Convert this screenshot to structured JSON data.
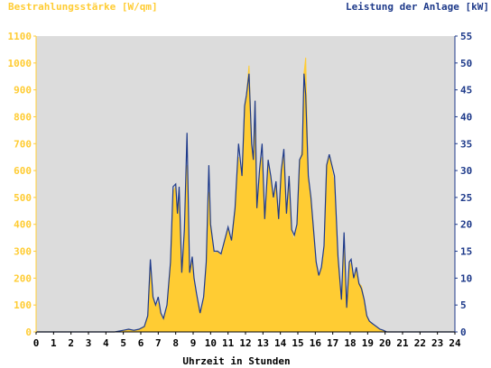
{
  "chart_data": {
    "type": "area",
    "ylabel_left": "Bestrahlungsstärke [W/qm]",
    "ylabel_right": "Leistung der Anlage [kW]",
    "xlabel": "Uhrzeit in Stunden",
    "xlim": [
      0,
      24
    ],
    "ylim_left": [
      0,
      1100
    ],
    "ylim_right": [
      0,
      55
    ],
    "grid": false,
    "x_ticks": [
      "0",
      "1",
      "2",
      "3",
      "4",
      "5",
      "6",
      "7",
      "8",
      "9",
      "10",
      "11",
      "12",
      "13",
      "14",
      "15",
      "16",
      "17",
      "18",
      "19",
      "20",
      "21",
      "22",
      "23",
      "24"
    ],
    "y_left_ticks": [
      "0",
      "100",
      "200",
      "300",
      "400",
      "500",
      "600",
      "700",
      "800",
      "900",
      "1000",
      "1100"
    ],
    "y_right_ticks": [
      "0",
      "5",
      "10",
      "15",
      "20",
      "25",
      "30",
      "35",
      "40",
      "45",
      "50",
      "55"
    ],
    "colors": {
      "irradiance": "#ffcc33",
      "power": "#1e3a8a",
      "plot_background": "#dcdcdc"
    },
    "series": [
      {
        "name": "Bestrahlungsstärke [W/qm]",
        "axis": "left",
        "x": [
          0,
          4.5,
          5,
          5.3,
          5.6,
          5.9,
          6.2,
          6.4,
          6.55,
          6.7,
          6.85,
          7.0,
          7.15,
          7.3,
          7.5,
          7.7,
          7.85,
          8.0,
          8.1,
          8.2,
          8.35,
          8.5,
          8.65,
          8.8,
          8.95,
          9.05,
          9.2,
          9.4,
          9.6,
          9.75,
          9.9,
          10.0,
          10.2,
          10.4,
          10.6,
          10.8,
          11.0,
          11.2,
          11.4,
          11.6,
          11.8,
          11.95,
          12.05,
          12.2,
          12.35,
          12.45,
          12.55,
          12.65,
          12.8,
          12.95,
          13.1,
          13.3,
          13.45,
          13.6,
          13.75,
          13.9,
          14.05,
          14.2,
          14.35,
          14.5,
          14.65,
          14.8,
          14.95,
          15.1,
          15.25,
          15.35,
          15.45,
          15.6,
          15.75,
          15.9,
          16.05,
          16.2,
          16.35,
          16.5,
          16.65,
          16.8,
          16.95,
          17.1,
          17.3,
          17.5,
          17.65,
          17.8,
          17.95,
          18.05,
          18.2,
          18.35,
          18.5,
          18.65,
          18.8,
          18.95,
          19.1,
          19.3,
          19.5,
          19.7,
          19.9,
          20.1,
          20.3,
          20.5,
          21,
          24
        ],
        "values": [
          0,
          0,
          5,
          8,
          5,
          10,
          20,
          60,
          250,
          120,
          90,
          110,
          60,
          40,
          90,
          250,
          520,
          540,
          420,
          530,
          200,
          380,
          620,
          210,
          270,
          180,
          120,
          60,
          120,
          250,
          520,
          380,
          290,
          300,
          280,
          330,
          380,
          340,
          460,
          650,
          560,
          840,
          880,
          990,
          700,
          640,
          860,
          460,
          600,
          650,
          410,
          640,
          560,
          480,
          560,
          420,
          600,
          660,
          420,
          580,
          370,
          340,
          400,
          620,
          680,
          960,
          1020,
          560,
          500,
          360,
          250,
          200,
          240,
          310,
          620,
          650,
          600,
          550,
          270,
          120,
          340,
          90,
          260,
          250,
          200,
          230,
          180,
          170,
          120,
          60,
          40,
          25,
          15,
          10,
          5,
          0,
          0,
          0,
          0,
          0
        ]
      },
      {
        "name": "Leistung der Anlage [kW]",
        "axis": "right",
        "x": [
          0,
          4.5,
          5,
          5.3,
          5.6,
          5.9,
          6.2,
          6.4,
          6.55,
          6.7,
          6.85,
          7.0,
          7.15,
          7.3,
          7.5,
          7.7,
          7.85,
          8.0,
          8.1,
          8.2,
          8.35,
          8.5,
          8.65,
          8.8,
          8.95,
          9.05,
          9.2,
          9.4,
          9.6,
          9.75,
          9.9,
          10.0,
          10.2,
          10.4,
          10.6,
          10.8,
          11.0,
          11.2,
          11.4,
          11.6,
          11.8,
          11.95,
          12.05,
          12.2,
          12.35,
          12.45,
          12.55,
          12.65,
          12.8,
          12.95,
          13.1,
          13.3,
          13.45,
          13.6,
          13.75,
          13.9,
          14.05,
          14.2,
          14.35,
          14.5,
          14.65,
          14.8,
          14.95,
          15.1,
          15.25,
          15.35,
          15.45,
          15.6,
          15.75,
          15.9,
          16.05,
          16.2,
          16.35,
          16.5,
          16.65,
          16.8,
          16.95,
          17.1,
          17.3,
          17.5,
          17.65,
          17.8,
          17.95,
          18.05,
          18.2,
          18.35,
          18.5,
          18.65,
          18.8,
          18.95,
          19.1,
          19.3,
          19.5,
          19.7,
          19.9,
          20.1,
          20.3,
          20.5,
          21,
          24
        ],
        "values": [
          0,
          0,
          0.3,
          0.5,
          0.3,
          0.5,
          1,
          3,
          13.5,
          6.5,
          5,
          6.5,
          3.5,
          2.5,
          5,
          13,
          27,
          27.5,
          22,
          27,
          11,
          19,
          37,
          11,
          14,
          10,
          7,
          3.5,
          6.5,
          13,
          31,
          20,
          15,
          15,
          14.5,
          17,
          19.5,
          17,
          23,
          35,
          29,
          42,
          44,
          48,
          35,
          32,
          43,
          23,
          30,
          35,
          21,
          32,
          29,
          25,
          28,
          21,
          30,
          34,
          22,
          29,
          19,
          18,
          20,
          32,
          33,
          48,
          44,
          29,
          25,
          19,
          13,
          10.5,
          12,
          16,
          31,
          33,
          31,
          29,
          14,
          6,
          18.5,
          4.5,
          13,
          13.5,
          10,
          12,
          9,
          8,
          6,
          3,
          2,
          1.5,
          1,
          0.5,
          0.3,
          0,
          0,
          0,
          0,
          0
        ]
      }
    ]
  }
}
